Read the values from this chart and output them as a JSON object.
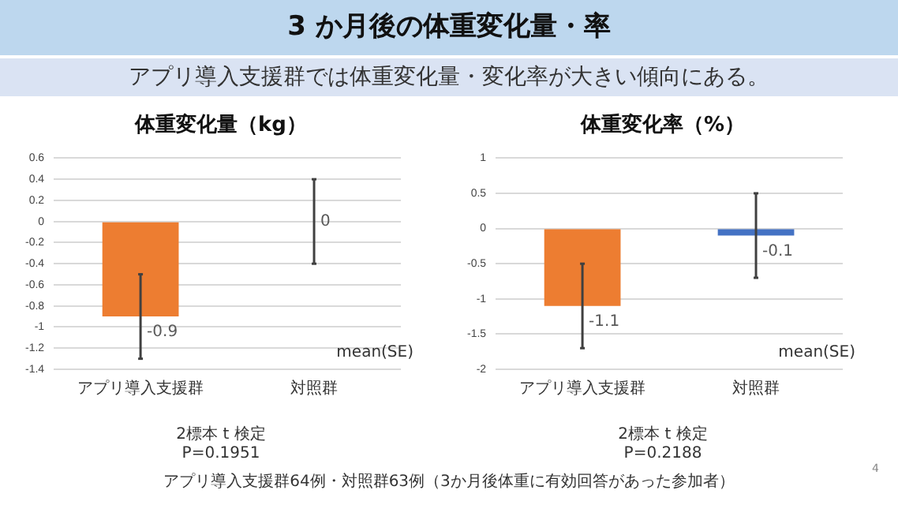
{
  "chart_data": [
    {
      "type": "bar",
      "title": "体重変化量（kg）",
      "categories": [
        "アプリ導入支援群",
        "対照群"
      ],
      "series": [
        {
          "colors": [
            "#ed7d31",
            "#4472c4"
          ],
          "values": [
            -0.9,
            0
          ],
          "errors": [
            [
              -1.3,
              -0.5
            ],
            [
              -0.4,
              0.4
            ]
          ]
        }
      ],
      "ylim": [
        -1.4,
        0.6
      ],
      "yticks": [
        -1.4,
        -1.2,
        -1,
        -0.8,
        -0.6,
        -0.4,
        -0.2,
        0,
        0.2,
        0.4,
        0.6
      ],
      "grid": "y",
      "legend": false,
      "data_labels": true,
      "annotations": [
        "3 か月後の体重変化量・率",
        "アプリ導入支援群では体重変化量・変化率が大きい傾向にある。",
        "mean(SE)",
        "2標本 t 検定",
        "P=0.1951"
      ]
    },
    {
      "type": "bar",
      "title": "体重変化率（%）",
      "categories": [
        "アプリ導入支援群",
        "対照群"
      ],
      "series": [
        {
          "colors": [
            "#ed7d31",
            "#4472c4"
          ],
          "values": [
            -1.1,
            -0.1
          ],
          "errors": [
            [
              -1.7,
              -0.5
            ],
            [
              -0.7,
              0.5
            ]
          ]
        }
      ],
      "ylim": [
        -2,
        1
      ],
      "yticks": [
        -2,
        -1.5,
        -1,
        -0.5,
        0,
        0.5,
        1
      ],
      "grid": "y",
      "legend": false,
      "data_labels": true,
      "annotations": [
        "mean(SE)",
        "2標本 t 検定",
        "P=0.2188",
        "アプリ導入支援群64例・対照群63例（3か月後体重に有効回答があった参加者）",
        "4"
      ]
    }
  ]
}
